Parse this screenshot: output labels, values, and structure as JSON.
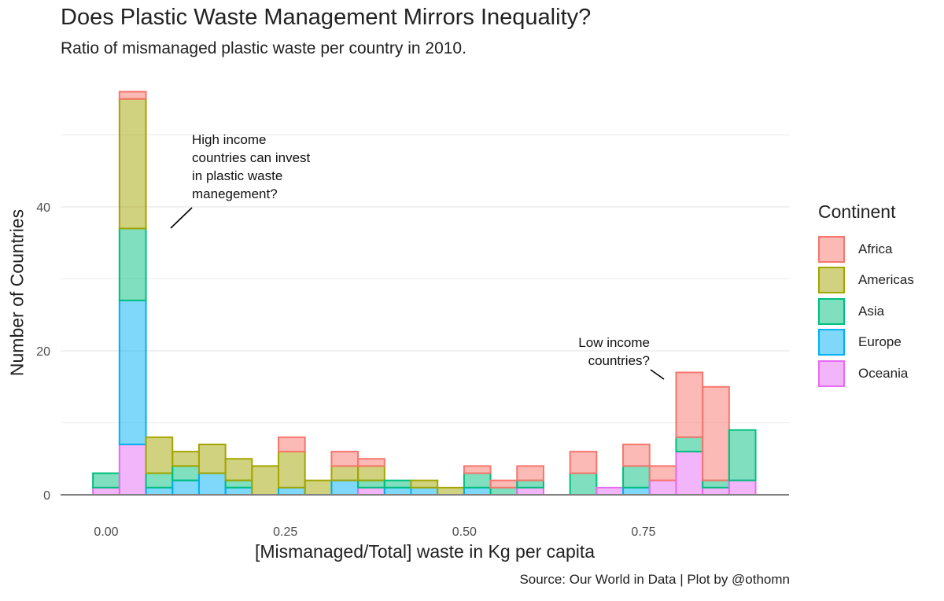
{
  "title": "Does Plastic Waste Management Mirrors Inequality?",
  "subtitle": "Ratio of mismanaged plastic waste per country in 2010.",
  "caption": "Source: Our World in Data | Plot by @othomn",
  "colors": {
    "Africa": "#F8766D",
    "Americas": "#A3A500",
    "Asia": "#00BF7D",
    "Europe": "#00B0F6",
    "Oceania": "#E76BF3"
  },
  "chart_data": {
    "type": "bar",
    "subtype": "stacked histogram",
    "xlabel": "[Mismanaged/Total] waste in Kg per capita",
    "ylabel": "Number of Countries",
    "xlim": [
      -0.05,
      0.95
    ],
    "ylim": [
      0,
      56
    ],
    "xticks": [
      "0.00",
      "0.25",
      "0.50",
      "0.75"
    ],
    "yticks": [
      "0",
      "20",
      "40"
    ],
    "grid": true,
    "legend_title": "Continent",
    "legend_position": "right",
    "bin_width": 0.037,
    "bin_centers": [
      0.0,
      0.037,
      0.074,
      0.111,
      0.148,
      0.185,
      0.222,
      0.259,
      0.296,
      0.333,
      0.37,
      0.407,
      0.444,
      0.481,
      0.518,
      0.555,
      0.592,
      0.629,
      0.666,
      0.703,
      0.74,
      0.777,
      0.814,
      0.851,
      0.888
    ],
    "series": [
      {
        "name": "Oceania",
        "values": [
          1,
          7,
          0,
          0,
          0,
          0,
          0,
          0,
          0,
          0,
          1,
          0,
          0,
          0,
          0,
          0,
          1,
          0,
          0,
          1,
          0,
          2,
          6,
          1,
          2
        ]
      },
      {
        "name": "Europe",
        "values": [
          0,
          20,
          1,
          2,
          3,
          1,
          0,
          1,
          0,
          2,
          0,
          1,
          1,
          0,
          1,
          0,
          0,
          0,
          0,
          0,
          1,
          0,
          0,
          0,
          0
        ]
      },
      {
        "name": "Asia",
        "values": [
          2,
          10,
          2,
          2,
          0,
          1,
          0,
          0,
          0,
          0,
          1,
          1,
          0,
          0,
          2,
          1,
          1,
          0,
          3,
          0,
          3,
          0,
          2,
          1,
          7
        ]
      },
      {
        "name": "Americas",
        "values": [
          0,
          18,
          5,
          2,
          4,
          3,
          4,
          5,
          2,
          2,
          2,
          0,
          1,
          1,
          0,
          0,
          0,
          0,
          0,
          0,
          0,
          0,
          0,
          0,
          0
        ]
      },
      {
        "name": "Africa",
        "values": [
          0,
          1,
          0,
          0,
          0,
          0,
          0,
          2,
          0,
          2,
          1,
          0,
          0,
          0,
          1,
          1,
          2,
          0,
          3,
          0,
          3,
          2,
          9,
          13,
          0
        ]
      }
    ],
    "annotations": [
      {
        "text": [
          "High income",
          "countries can invest",
          "in plastic waste",
          "manegement?"
        ]
      },
      {
        "text": [
          "Low income",
          "countries?"
        ]
      }
    ]
  }
}
